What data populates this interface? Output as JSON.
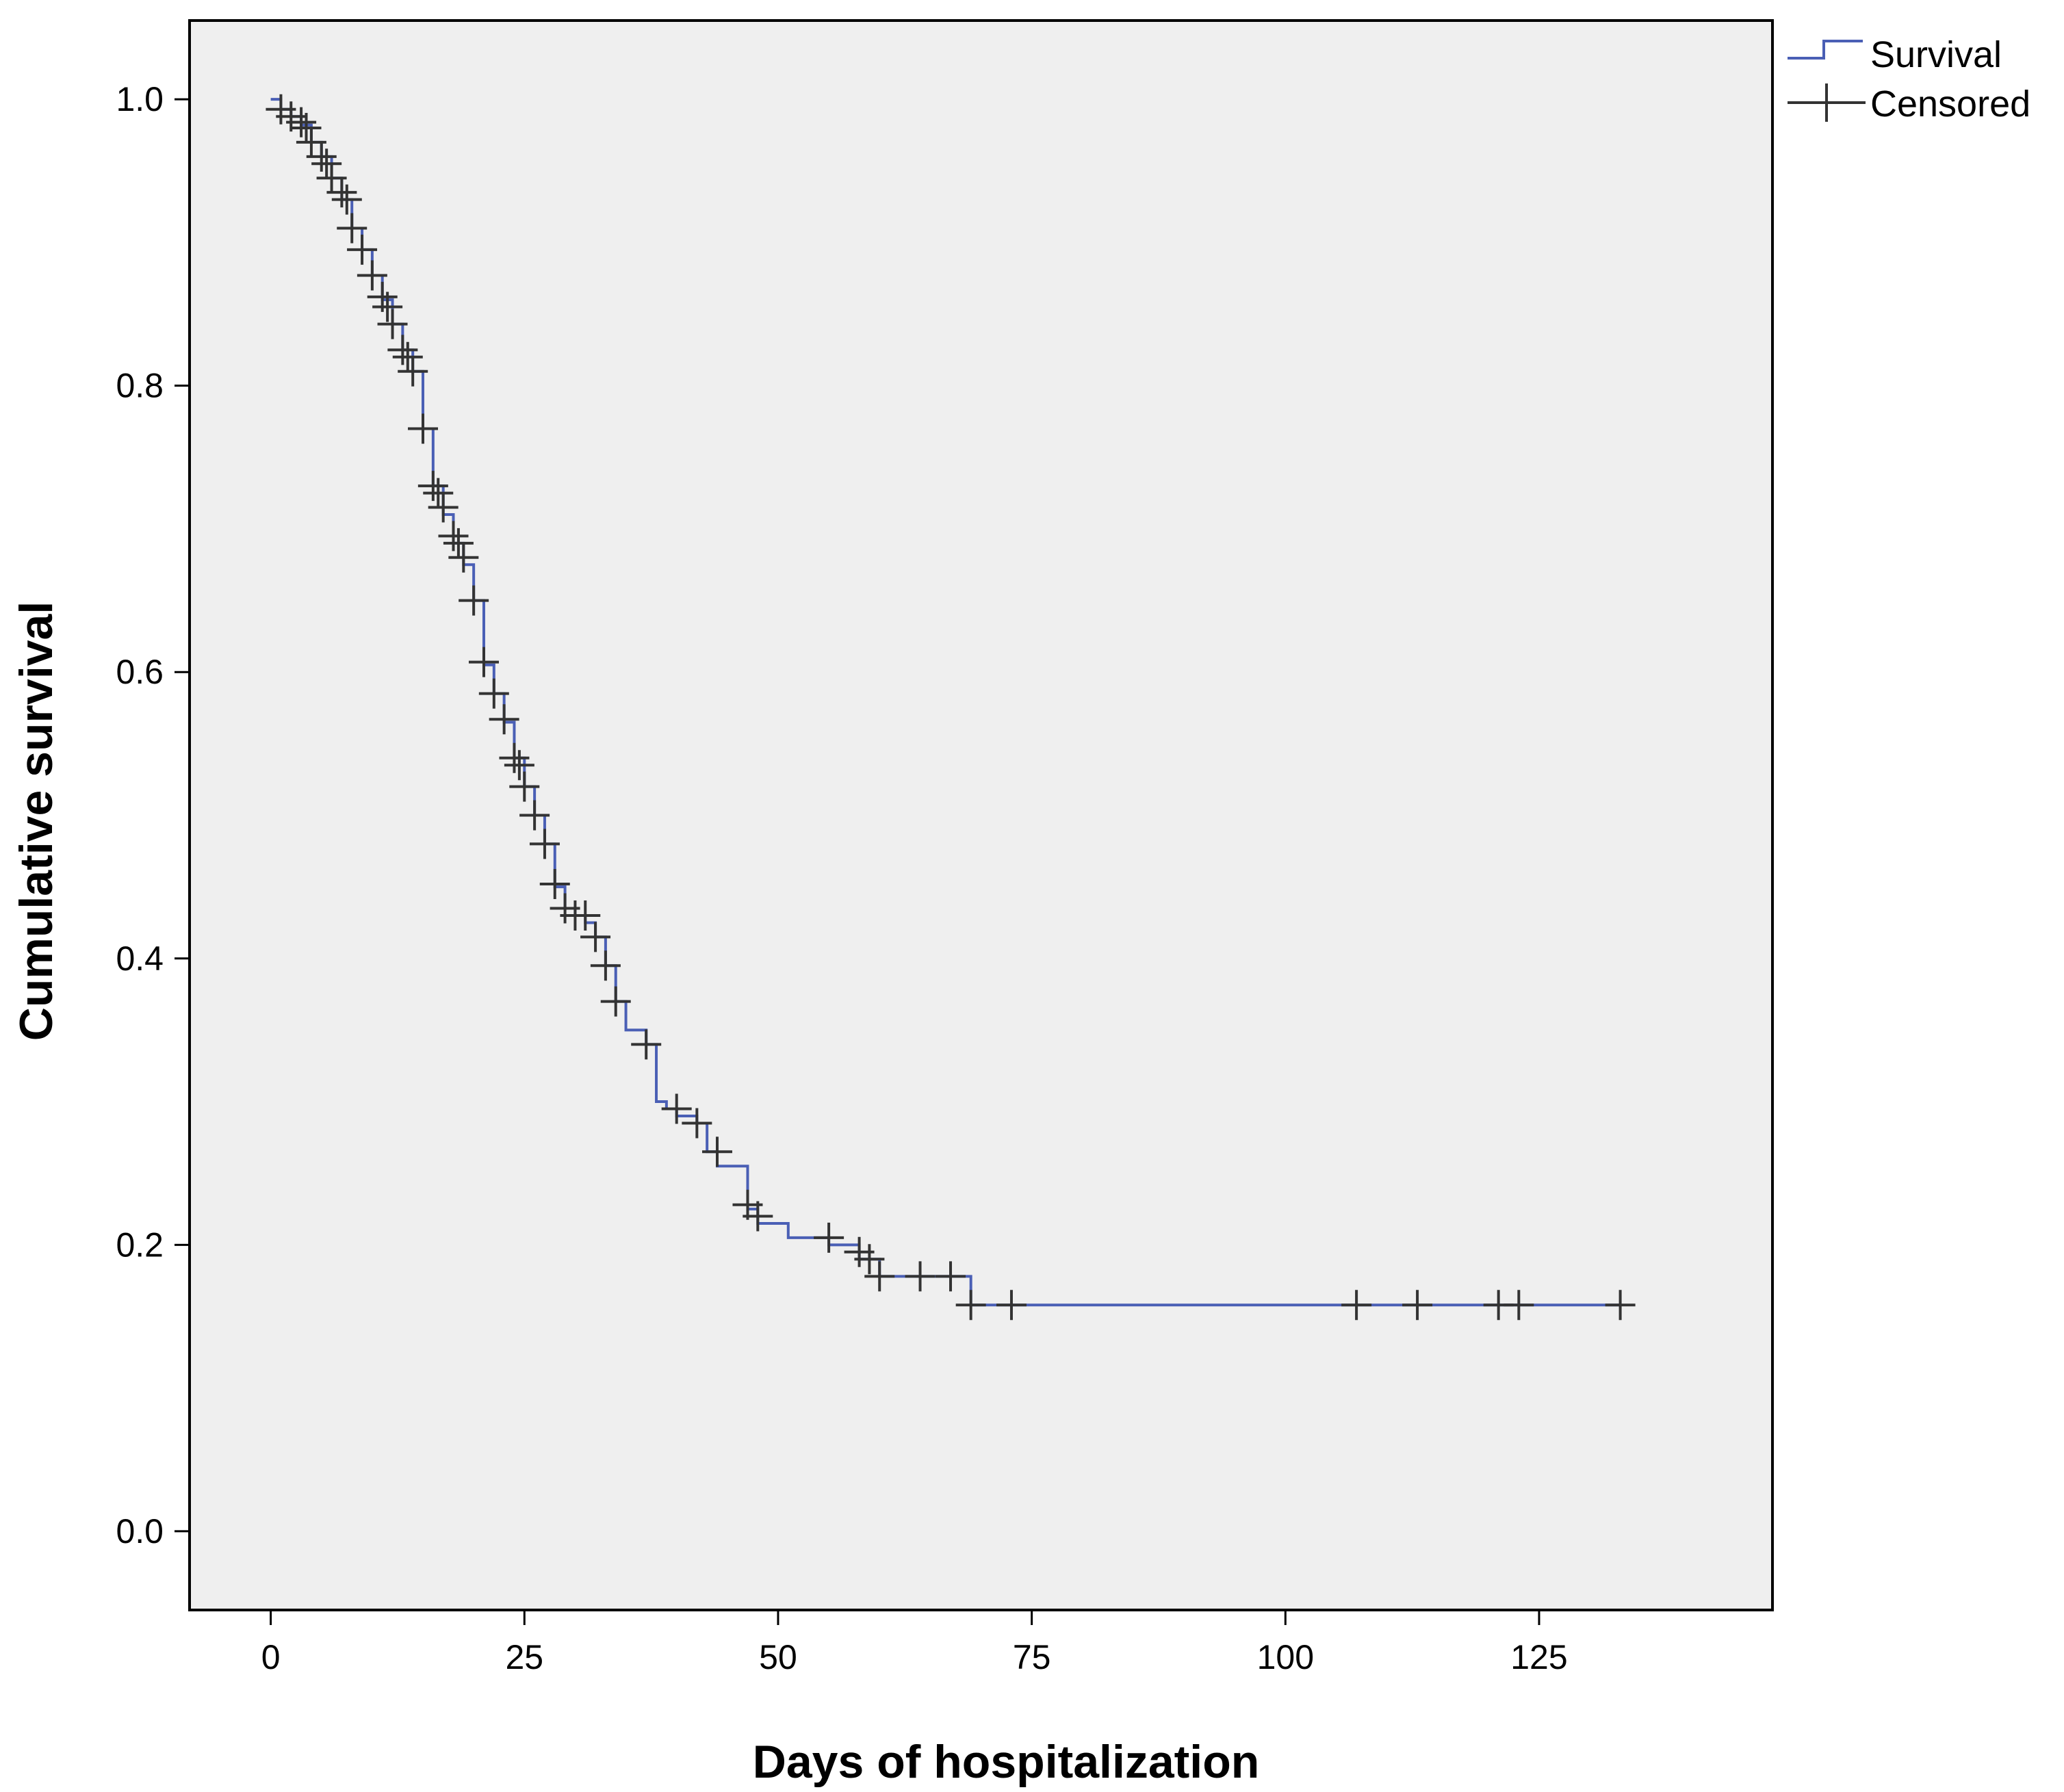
{
  "chart_data": {
    "type": "line",
    "subtype": "kaplan-meier survival curve",
    "title": "",
    "xlabel": "Days of hospitalization",
    "ylabel": "Cumulative survival",
    "xlim": [
      -8,
      148
    ],
    "ylim": [
      -0.055,
      1.055
    ],
    "xticks": [
      0,
      25,
      50,
      75,
      100,
      125
    ],
    "xtick_labels": [
      "0",
      "25",
      "50",
      "75",
      "100",
      "125"
    ],
    "yticks": [
      0.0,
      0.2,
      0.4,
      0.6,
      0.8,
      1.0
    ],
    "ytick_labels": [
      "0.0",
      "0.2",
      "0.4",
      "0.6",
      "0.8",
      "1.0"
    ],
    "grid": false,
    "legend_position": "outside-top-right",
    "legend": {
      "survival_label": "Survival",
      "censored_label": "Censored"
    },
    "colors": {
      "plot_background": "#efefef",
      "survival_line": "#4a5fb5",
      "censored_marker": "#333333",
      "frame": "#000000"
    },
    "series": [
      {
        "name": "Survival",
        "kind": "step",
        "x": [
          0,
          1,
          2,
          3,
          4,
          5,
          6,
          7,
          8,
          9,
          10,
          11,
          12,
          13,
          14,
          15,
          16,
          17,
          18,
          19,
          20,
          21,
          22,
          23,
          24,
          25,
          26,
          27,
          28,
          29,
          30,
          31,
          32,
          33,
          34,
          35,
          37,
          38,
          39,
          40,
          42,
          43,
          44,
          47,
          48,
          51,
          55,
          58,
          60,
          69,
          133
        ],
        "y": [
          1.0,
          0.993,
          0.988,
          0.982,
          0.97,
          0.96,
          0.945,
          0.93,
          0.91,
          0.895,
          0.877,
          0.86,
          0.843,
          0.825,
          0.81,
          0.77,
          0.73,
          0.71,
          0.69,
          0.675,
          0.65,
          0.605,
          0.585,
          0.565,
          0.54,
          0.52,
          0.5,
          0.48,
          0.45,
          0.435,
          0.43,
          0.425,
          0.415,
          0.395,
          0.37,
          0.35,
          0.34,
          0.3,
          0.295,
          0.29,
          0.285,
          0.265,
          0.255,
          0.225,
          0.215,
          0.205,
          0.2,
          0.19,
          0.178,
          0.158,
          0.158
        ]
      },
      {
        "name": "Censored",
        "kind": "markers",
        "x": [
          1,
          2,
          3,
          3.5,
          4,
          5,
          5.5,
          6,
          7,
          7.5,
          8,
          9,
          10,
          11,
          11.5,
          12,
          13,
          13.5,
          14,
          15,
          16,
          16.5,
          17,
          18,
          18.5,
          19,
          20,
          21,
          22,
          23,
          24,
          24.5,
          25,
          26,
          27,
          28,
          29,
          30,
          31,
          32,
          33,
          34,
          37,
          40,
          42,
          44,
          47,
          48,
          55,
          58,
          59,
          60,
          64,
          67,
          69,
          73,
          107,
          113,
          121,
          123,
          133
        ],
        "y": [
          0.993,
          0.988,
          0.984,
          0.98,
          0.97,
          0.96,
          0.955,
          0.945,
          0.935,
          0.93,
          0.91,
          0.895,
          0.877,
          0.862,
          0.855,
          0.843,
          0.825,
          0.82,
          0.81,
          0.77,
          0.73,
          0.725,
          0.715,
          0.695,
          0.69,
          0.68,
          0.65,
          0.607,
          0.585,
          0.567,
          0.54,
          0.535,
          0.52,
          0.5,
          0.48,
          0.452,
          0.435,
          0.43,
          0.43,
          0.415,
          0.395,
          0.37,
          0.34,
          0.295,
          0.285,
          0.265,
          0.228,
          0.22,
          0.205,
          0.195,
          0.19,
          0.178,
          0.178,
          0.178,
          0.158,
          0.158,
          0.158,
          0.158,
          0.158,
          0.158,
          0.158
        ]
      }
    ]
  }
}
